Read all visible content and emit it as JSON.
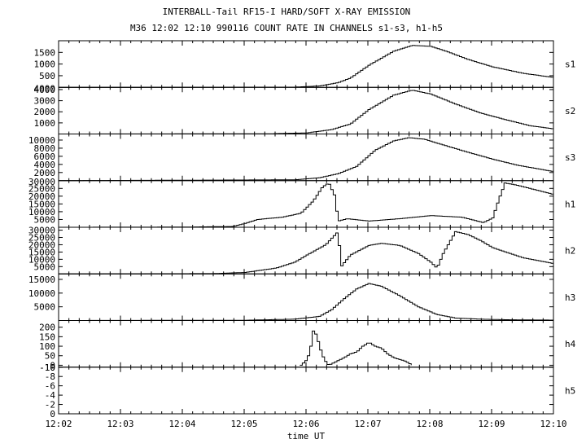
{
  "chart_data": {
    "type": "line",
    "title": "INTERBALL-Tail RF15-I HARD/SOFT X-RAY EMISSION",
    "subtitle": "M36  12:02 12:10 990116  COUNT RATE IN CHANNELS s1-s3, h1-h5",
    "xlabel": "time UT",
    "x_ticks": [
      "12:02",
      "12:03",
      "12:04",
      "12:05",
      "12:06",
      "12:07",
      "12:08",
      "12:09",
      "12:10"
    ],
    "xlim": [
      0,
      8
    ],
    "grid": false,
    "panels": [
      {
        "name": "s1",
        "ylim": [
          0,
          2000
        ],
        "yticks": [
          500,
          1000,
          1500
        ],
        "ytick_labels": [
          "500",
          "1000",
          "1500"
        ],
        "top_label": "",
        "x": [
          0,
          3.8,
          4.2,
          4.5,
          4.7,
          5.0,
          5.4,
          5.7,
          6.0,
          6.3,
          6.6,
          7.0,
          7.5,
          8.0
        ],
        "values": [
          0,
          10,
          60,
          200,
          400,
          950,
          1550,
          1800,
          1760,
          1500,
          1200,
          880,
          600,
          420
        ]
      },
      {
        "name": "s2",
        "ylim": [
          0,
          4200
        ],
        "yticks": [
          1000,
          2000,
          3000,
          4000
        ],
        "ytick_labels": [
          "1000",
          "2000",
          "3000",
          "4000"
        ],
        "top_label": "4000",
        "x": [
          0,
          3.4,
          4.0,
          4.4,
          4.7,
          5.0,
          5.4,
          5.7,
          6.0,
          6.4,
          6.8,
          7.2,
          7.6,
          8.0
        ],
        "values": [
          0,
          20,
          100,
          400,
          900,
          2200,
          3500,
          3950,
          3600,
          2700,
          1900,
          1300,
          750,
          450
        ]
      },
      {
        "name": "s3",
        "ylim": [
          0,
          11500
        ],
        "yticks": [
          2000,
          4000,
          6000,
          8000,
          10000
        ],
        "ytick_labels": [
          "2000",
          "4000",
          "6000",
          "8000",
          "10000"
        ],
        "top_label": "",
        "x": [
          0,
          3.8,
          4.2,
          4.5,
          4.8,
          5.1,
          5.4,
          5.65,
          5.9,
          6.2,
          6.6,
          7.0,
          7.4,
          8.0
        ],
        "values": [
          0,
          200,
          700,
          1700,
          3500,
          7500,
          9800,
          10600,
          10200,
          8800,
          7000,
          5300,
          3800,
          2200
        ]
      },
      {
        "name": "h1",
        "ylim": [
          0,
          30000
        ],
        "yticks": [
          5000,
          10000,
          15000,
          20000,
          25000
        ],
        "ytick_labels": [
          "5000",
          "10000",
          "15000",
          "20000",
          "25000"
        ],
        "top_label": "30000",
        "x": [
          0,
          2.0,
          2.8,
          3.0,
          3.2,
          3.6,
          3.9,
          4.1,
          4.25,
          4.35,
          4.45,
          4.5,
          4.65,
          5.0,
          5.5,
          6.0,
          6.5,
          6.85,
          7.0,
          7.1,
          7.2,
          7.4,
          7.7,
          8.0
        ],
        "values": [
          0,
          100,
          500,
          2500,
          5000,
          6500,
          9000,
          17000,
          26000,
          28500,
          20000,
          4000,
          5500,
          4000,
          5500,
          7500,
          6500,
          3000,
          6000,
          18000,
          28500,
          27000,
          24000,
          21000
        ]
      },
      {
        "name": "h2",
        "ylim": [
          0,
          32000
        ],
        "yticks": [
          5000,
          10000,
          15000,
          20000,
          25000,
          30000
        ],
        "ytick_labels": [
          "5000",
          "10000",
          "15000",
          "20000",
          "25000",
          "30000"
        ],
        "top_label": "",
        "x": [
          0,
          2.5,
          3.0,
          3.5,
          3.8,
          4.0,
          4.3,
          4.5,
          4.55,
          4.7,
          5.0,
          5.2,
          5.5,
          5.8,
          6.0,
          6.1,
          6.2,
          6.4,
          6.6,
          6.8,
          7.0,
          7.5,
          8.0
        ],
        "values": [
          0,
          200,
          1000,
          4000,
          8000,
          13000,
          20000,
          29000,
          5000,
          13000,
          19500,
          21000,
          19500,
          14000,
          8000,
          4000,
          14000,
          29000,
          27000,
          23000,
          18000,
          11000,
          7000
        ]
      },
      {
        "name": "h3",
        "ylim": [
          0,
          17000
        ],
        "yticks": [
          5000,
          10000,
          15000
        ],
        "ytick_labels": [
          "5000",
          "10000",
          "15000"
        ],
        "top_label": "",
        "x": [
          0,
          3.0,
          3.8,
          4.2,
          4.4,
          4.6,
          4.8,
          5.0,
          5.2,
          5.5,
          5.8,
          6.1,
          6.4,
          6.8,
          7.2,
          7.6,
          8.0
        ],
        "values": [
          0,
          100,
          500,
          1500,
          4000,
          8000,
          11500,
          13500,
          12500,
          9000,
          5000,
          2200,
          900,
          500,
          300,
          200,
          150
        ]
      },
      {
        "name": "h4",
        "ylim": [
          -10,
          235
        ],
        "yticks": [
          -10,
          0,
          50,
          100,
          150,
          200
        ],
        "ytick_labels": [
          "-10",
          "0",
          "50",
          "100",
          "150",
          "200"
        ],
        "top_label": "",
        "x": [
          3.9,
          4.0,
          4.05,
          4.1,
          4.15,
          4.2,
          4.25,
          4.3,
          4.35,
          4.6,
          4.7,
          4.8,
          4.9,
          5.0,
          5.1,
          5.2,
          5.3,
          5.4,
          5.5,
          5.6,
          5.7
        ],
        "values": [
          0,
          30,
          80,
          180,
          160,
          100,
          50,
          20,
          0,
          40,
          60,
          70,
          100,
          120,
          100,
          90,
          60,
          40,
          30,
          20,
          0
        ]
      },
      {
        "name": "h5",
        "ylim": [
          0,
          -10
        ],
        "yticks": [
          0,
          -2,
          -4,
          -6,
          -8,
          -10
        ],
        "ytick_labels": [
          "0",
          "-2",
          "-4",
          "-6",
          "-8",
          "-10"
        ],
        "top_label": "",
        "x": [],
        "values": []
      }
    ]
  }
}
